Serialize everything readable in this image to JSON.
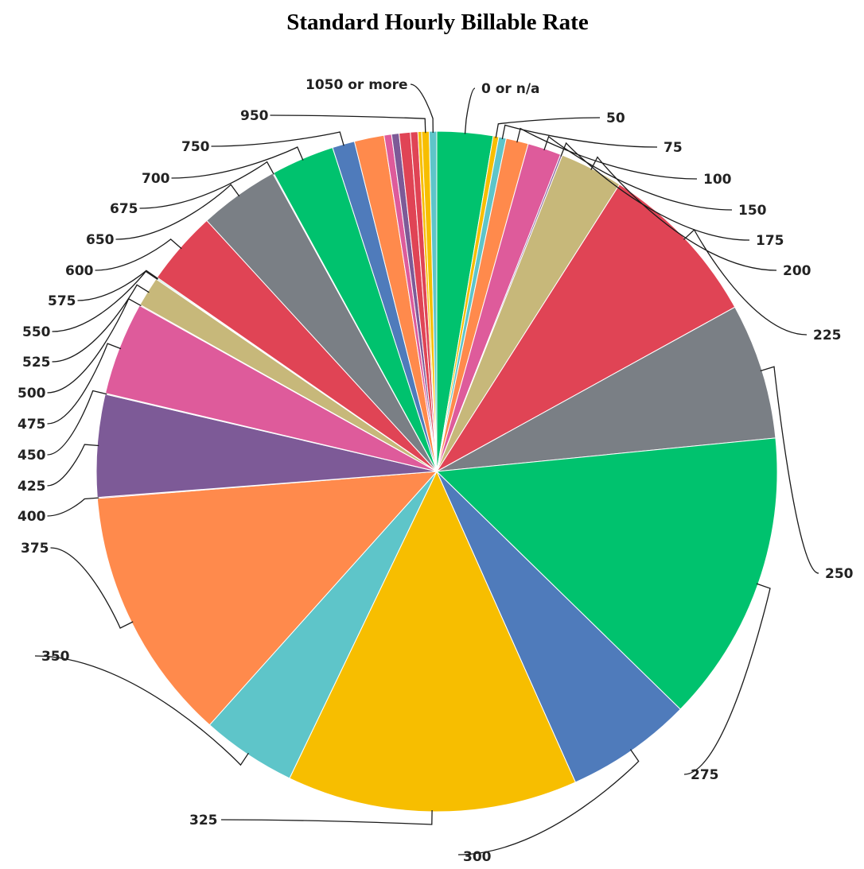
{
  "chart_data": {
    "type": "pie",
    "title": "Standard Hourly Billable Rate",
    "slices": [
      {
        "label": "0 or n/a",
        "value": 3.0,
        "color": "#00c26e"
      },
      {
        "label": "50",
        "value": 0.3,
        "color": "#f7be00"
      },
      {
        "label": "75",
        "value": 0.4,
        "color": "#5ec5c9"
      },
      {
        "label": "100",
        "value": 1.2,
        "color": "#ff8a4c"
      },
      {
        "label": "150",
        "value": 1.8,
        "color": "#de5b9b"
      },
      {
        "label": "175",
        "value": 0.1,
        "color": "#7d5a97"
      },
      {
        "label": "200",
        "value": 3.4,
        "color": "#c7b87a"
      },
      {
        "label": "225",
        "value": 9.0,
        "color": "#e04455"
      },
      {
        "label": "250",
        "value": 7.3,
        "color": "#7a7f85"
      },
      {
        "label": "275",
        "value": 15.7,
        "color": "#00c26e"
      },
      {
        "label": "300",
        "value": 6.8,
        "color": "#4f7bbb"
      },
      {
        "label": "325",
        "value": 15.6,
        "color": "#f7be00"
      },
      {
        "label": "350",
        "value": 5.1,
        "color": "#5ec5c9"
      },
      {
        "label": "375",
        "value": 13.7,
        "color": "#ff8a4c"
      },
      {
        "label": "400",
        "value": 0.05,
        "color": "#de5b9b"
      },
      {
        "label": "425",
        "value": 5.5,
        "color": "#7d5a97"
      },
      {
        "label": "450",
        "value": 0.05,
        "color": "#c7b87a"
      },
      {
        "label": "475",
        "value": 5.0,
        "color": "#de5b9b"
      },
      {
        "label": "500",
        "value": 0.05,
        "color": "#e04455"
      },
      {
        "label": "525",
        "value": 1.6,
        "color": "#c7b87a"
      },
      {
        "label": "550",
        "value": 0.05,
        "color": "#7a7f85"
      },
      {
        "label": "575",
        "value": 0.05,
        "color": "#00c26e"
      },
      {
        "label": "600",
        "value": 4.0,
        "color": "#e04455"
      },
      {
        "label": "650",
        "value": 4.3,
        "color": "#7a7f85"
      },
      {
        "label": "675",
        "value": 0.05,
        "color": "#4f7bbb"
      },
      {
        "label": "700",
        "value": 3.4,
        "color": "#00c26e"
      },
      {
        "label": "750",
        "value": 1.2,
        "color": "#4f7bbb"
      },
      {
        "label": "950",
        "value": 0.4,
        "color": "#f7be00"
      },
      {
        "label": "1050 or more",
        "value": 0.4,
        "color": "#5ec5c9"
      }
    ],
    "extra_slices": [
      {
        "value": 1.6,
        "color": "#ff8a4c"
      },
      {
        "value": 0.4,
        "color": "#de5b9b"
      },
      {
        "value": 0.4,
        "color": "#7d5a97"
      },
      {
        "value": 0.6,
        "color": "#e04455"
      },
      {
        "value": 0.4,
        "color": "#e04455"
      },
      {
        "value": 0.2,
        "color": "#f7be00"
      }
    ],
    "legend": "none",
    "label_style": "leader-lines"
  }
}
